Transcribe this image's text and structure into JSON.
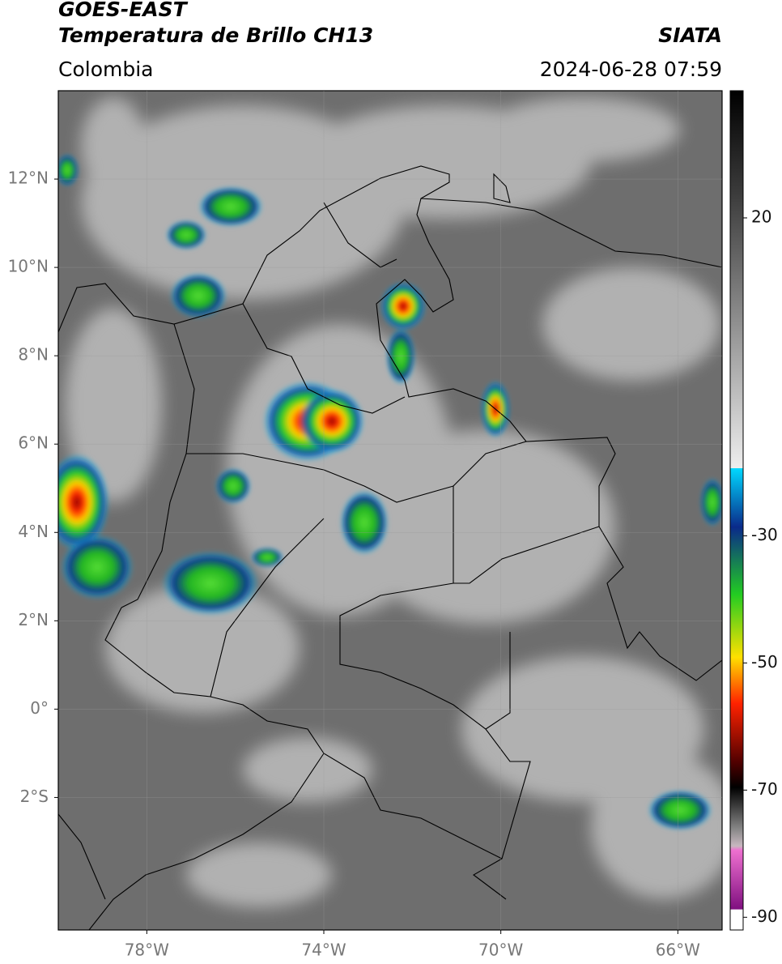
{
  "header": {
    "title": "GOES-EAST",
    "subtitle": "Temperatura de Brillo CH13",
    "source": "SIATA",
    "region": "Colombia",
    "datetime": "2024-06-28 07:59"
  },
  "map": {
    "xlim": [
      -80,
      -65
    ],
    "ylim": [
      -5,
      14
    ],
    "xticks": [
      {
        "value": -78,
        "label": "78°W"
      },
      {
        "value": -74,
        "label": "74°W"
      },
      {
        "value": -70,
        "label": "70°W"
      },
      {
        "value": -66,
        "label": "66°W"
      }
    ],
    "yticks": [
      {
        "value": 12,
        "label": "12°N"
      },
      {
        "value": 10,
        "label": "10°N"
      },
      {
        "value": 8,
        "label": "8°N"
      },
      {
        "value": 6,
        "label": "6°N"
      },
      {
        "value": 4,
        "label": "4°N"
      },
      {
        "value": 2,
        "label": "2°N"
      },
      {
        "value": 0,
        "label": "0°"
      },
      {
        "value": -2,
        "label": "2°S"
      }
    ]
  },
  "colorbar": {
    "lim": [
      -92,
      40
    ],
    "ticks": [
      20,
      -30,
      -50,
      -70,
      -90
    ]
  }
}
